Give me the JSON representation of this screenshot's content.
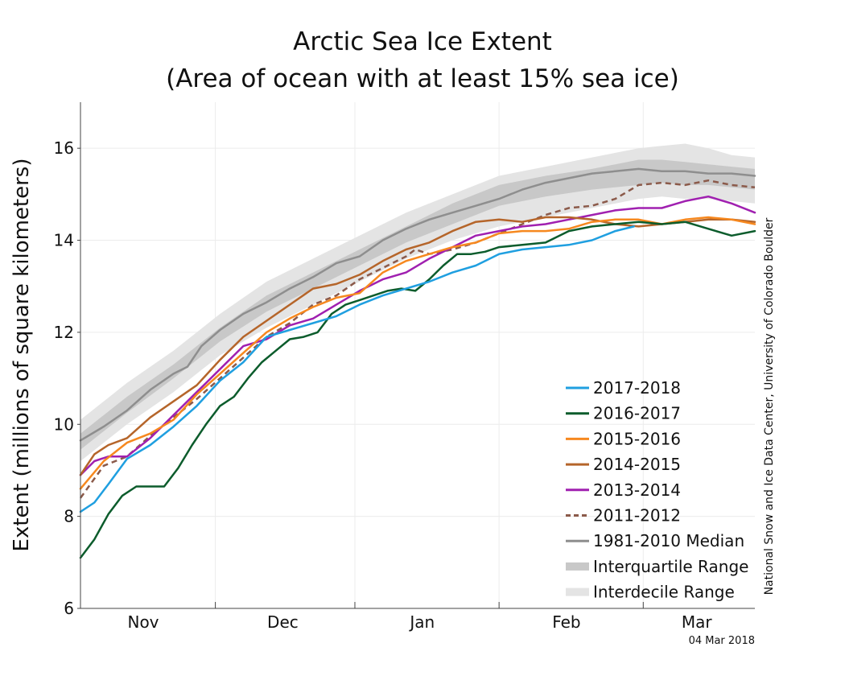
{
  "chart_data": {
    "type": "line",
    "title": "Arctic Sea Ice Extent",
    "subtitle": "(Area of ocean with at least 15% sea ice)",
    "ylabel": "Extent (millions of square kilometers)",
    "xlabel": "",
    "ylim": [
      6,
      17
    ],
    "yticks": [
      6,
      8,
      10,
      12,
      14,
      16
    ],
    "xlim": [
      0,
      145
    ],
    "x_unit": "day index starting Oct 28",
    "x_tick_labels": [
      {
        "label": "Nov",
        "x": 13.5
      },
      {
        "label": "Dec",
        "x": 43.5
      },
      {
        "label": "Jan",
        "x": 73.5
      },
      {
        "label": "Feb",
        "x": 104.5
      },
      {
        "label": "Mar",
        "x": 132.5
      }
    ],
    "x_boundaries": [
      29,
      59,
      90,
      121
    ],
    "grid": true,
    "legend_position": "bottom-right",
    "date_stamp": "04 Mar 2018",
    "credit": "National Snow and Ice Data Center, University of Colorado Boulder",
    "bands": [
      {
        "name": "Interdecile Range",
        "color": "#e4e4e4",
        "x": [
          0,
          10,
          20,
          30,
          40,
          50,
          60,
          70,
          80,
          90,
          100,
          110,
          120,
          125,
          130,
          135,
          140,
          145
        ],
        "upper": [
          10.1,
          10.9,
          11.6,
          12.4,
          13.1,
          13.6,
          14.1,
          14.6,
          15.0,
          15.4,
          15.6,
          15.8,
          16.0,
          16.05,
          16.1,
          16.0,
          15.85,
          15.8
        ],
        "lower": [
          9.2,
          10.0,
          10.7,
          11.5,
          12.1,
          12.6,
          13.1,
          13.6,
          14.0,
          14.3,
          14.5,
          14.7,
          14.9,
          14.95,
          14.9,
          14.9,
          14.85,
          14.8
        ]
      },
      {
        "name": "Interquartile Range",
        "color": "#c8c8c8",
        "x": [
          0,
          10,
          20,
          30,
          40,
          50,
          60,
          70,
          80,
          90,
          100,
          110,
          120,
          125,
          130,
          135,
          140,
          145
        ],
        "upper": [
          9.8,
          10.6,
          11.3,
          12.1,
          12.8,
          13.3,
          13.8,
          14.3,
          14.8,
          15.2,
          15.4,
          15.55,
          15.75,
          15.75,
          15.7,
          15.65,
          15.6,
          15.55
        ],
        "lower": [
          9.45,
          10.25,
          11.0,
          11.8,
          12.45,
          12.95,
          13.45,
          13.95,
          14.35,
          14.75,
          14.95,
          15.1,
          15.2,
          15.25,
          15.2,
          15.2,
          15.15,
          15.1
        ]
      }
    ],
    "series": [
      {
        "name": "1981-2010 Median",
        "color": "#8e8e8e",
        "dash": false,
        "width": 2.5,
        "x": [
          0,
          5,
          10,
          15,
          20,
          23,
          26,
          30,
          35,
          40,
          45,
          50,
          55,
          60,
          65,
          70,
          75,
          80,
          85,
          90,
          95,
          100,
          105,
          110,
          115,
          120,
          125,
          130,
          135,
          140,
          145
        ],
        "y": [
          9.65,
          9.95,
          10.3,
          10.75,
          11.1,
          11.25,
          11.7,
          12.05,
          12.4,
          12.65,
          12.95,
          13.2,
          13.5,
          13.65,
          14.0,
          14.25,
          14.45,
          14.6,
          14.75,
          14.9,
          15.1,
          15.25,
          15.35,
          15.45,
          15.5,
          15.55,
          15.5,
          15.5,
          15.45,
          15.45,
          15.4
        ]
      },
      {
        "name": "2011-2012",
        "color": "#8b5a4a",
        "dash": true,
        "width": 2.5,
        "x": [
          0,
          5,
          10,
          15,
          20,
          25,
          30,
          35,
          40,
          45,
          50,
          55,
          60,
          65,
          70,
          72,
          75,
          80,
          85,
          90,
          95,
          100,
          105,
          110,
          115,
          120,
          125,
          130,
          135,
          140,
          145
        ],
        "y": [
          8.4,
          9.1,
          9.3,
          9.75,
          10.15,
          10.55,
          11.0,
          11.45,
          11.9,
          12.2,
          12.6,
          12.8,
          13.15,
          13.4,
          13.65,
          13.8,
          13.7,
          13.8,
          13.95,
          14.15,
          14.35,
          14.55,
          14.7,
          14.75,
          14.9,
          15.2,
          15.25,
          15.2,
          15.3,
          15.2,
          15.15
        ]
      },
      {
        "name": "2013-2014",
        "color": "#a020b0",
        "dash": false,
        "width": 2.5,
        "x": [
          0,
          3,
          6,
          10,
          15,
          20,
          25,
          30,
          35,
          40,
          45,
          50,
          55,
          60,
          65,
          70,
          75,
          80,
          85,
          90,
          95,
          100,
          105,
          110,
          115,
          120,
          125,
          130,
          135,
          140,
          145
        ],
        "y": [
          8.9,
          9.2,
          9.3,
          9.3,
          9.7,
          10.2,
          10.7,
          11.2,
          11.7,
          11.85,
          12.15,
          12.3,
          12.6,
          12.9,
          13.15,
          13.3,
          13.6,
          13.85,
          14.1,
          14.2,
          14.3,
          14.35,
          14.45,
          14.55,
          14.65,
          14.7,
          14.7,
          14.85,
          14.95,
          14.8,
          14.6
        ]
      },
      {
        "name": "2014-2015",
        "color": "#b5652a",
        "dash": false,
        "width": 2.5,
        "x": [
          0,
          3,
          6,
          10,
          15,
          20,
          25,
          30,
          35,
          40,
          45,
          50,
          55,
          60,
          65,
          70,
          75,
          80,
          85,
          90,
          95,
          100,
          105,
          110,
          115,
          120,
          125,
          130,
          135,
          140,
          145
        ],
        "y": [
          8.9,
          9.35,
          9.55,
          9.7,
          10.15,
          10.5,
          10.85,
          11.4,
          11.9,
          12.25,
          12.6,
          12.95,
          13.05,
          13.25,
          13.55,
          13.8,
          13.95,
          14.2,
          14.4,
          14.45,
          14.4,
          14.5,
          14.5,
          14.45,
          14.35,
          14.3,
          14.35,
          14.4,
          14.45,
          14.45,
          14.4
        ]
      },
      {
        "name": "2015-2016",
        "color": "#f6881f",
        "dash": false,
        "width": 2.5,
        "x": [
          0,
          5,
          10,
          15,
          20,
          25,
          30,
          35,
          40,
          45,
          50,
          55,
          60,
          65,
          70,
          75,
          80,
          85,
          90,
          95,
          100,
          105,
          110,
          115,
          120,
          125,
          130,
          135,
          140,
          145
        ],
        "y": [
          8.6,
          9.2,
          9.6,
          9.8,
          10.1,
          10.65,
          11.1,
          11.55,
          12.0,
          12.3,
          12.55,
          12.75,
          12.85,
          13.3,
          13.55,
          13.7,
          13.85,
          13.95,
          14.15,
          14.2,
          14.2,
          14.25,
          14.4,
          14.45,
          14.45,
          14.35,
          14.45,
          14.5,
          14.45,
          14.35
        ]
      },
      {
        "name": "2016-2017",
        "color": "#0c5c2c",
        "dash": false,
        "width": 2.5,
        "x": [
          0,
          3,
          6,
          9,
          12,
          15,
          18,
          21,
          24,
          27,
          30,
          33,
          36,
          39,
          42,
          45,
          48,
          51,
          54,
          57,
          60,
          63,
          66,
          69,
          72,
          75,
          78,
          81,
          84,
          87,
          90,
          95,
          100,
          105,
          110,
          115,
          120,
          125,
          130,
          135,
          140,
          145
        ],
        "y": [
          7.1,
          7.5,
          8.05,
          8.45,
          8.65,
          8.65,
          8.65,
          9.05,
          9.55,
          10.0,
          10.4,
          10.6,
          11.0,
          11.35,
          11.6,
          11.85,
          11.9,
          12.0,
          12.4,
          12.6,
          12.7,
          12.8,
          12.9,
          12.95,
          12.9,
          13.15,
          13.45,
          13.7,
          13.7,
          13.75,
          13.85,
          13.9,
          13.95,
          14.2,
          14.3,
          14.35,
          14.4,
          14.35,
          14.4,
          14.25,
          14.1,
          14.2
        ]
      },
      {
        "name": "2017-2018",
        "color": "#1f9fe0",
        "dash": false,
        "width": 2.5,
        "x": [
          0,
          3,
          6,
          10,
          15,
          20,
          25,
          30,
          35,
          40,
          45,
          50,
          55,
          60,
          65,
          70,
          75,
          80,
          85,
          90,
          95,
          100,
          105,
          110,
          115,
          119
        ],
        "y": [
          8.1,
          8.3,
          8.7,
          9.25,
          9.55,
          9.95,
          10.4,
          10.95,
          11.35,
          11.9,
          12.05,
          12.2,
          12.35,
          12.6,
          12.8,
          12.95,
          13.1,
          13.3,
          13.45,
          13.7,
          13.8,
          13.85,
          13.9,
          14.0,
          14.2,
          14.3
        ]
      }
    ],
    "legend": [
      {
        "label": "2017-2018",
        "color": "#1f9fe0",
        "kind": "line"
      },
      {
        "label": "2016-2017",
        "color": "#0c5c2c",
        "kind": "line"
      },
      {
        "label": "2015-2016",
        "color": "#f6881f",
        "kind": "line"
      },
      {
        "label": "2014-2015",
        "color": "#b5652a",
        "kind": "line"
      },
      {
        "label": "2013-2014",
        "color": "#a020b0",
        "kind": "line"
      },
      {
        "label": "2011-2012",
        "color": "#8b5a4a",
        "kind": "dashed"
      },
      {
        "label": "1981-2010 Median",
        "color": "#8e8e8e",
        "kind": "line"
      },
      {
        "label": "Interquartile Range",
        "color": "#c8c8c8",
        "kind": "band"
      },
      {
        "label": "Interdecile Range",
        "color": "#e4e4e4",
        "kind": "band"
      }
    ]
  }
}
